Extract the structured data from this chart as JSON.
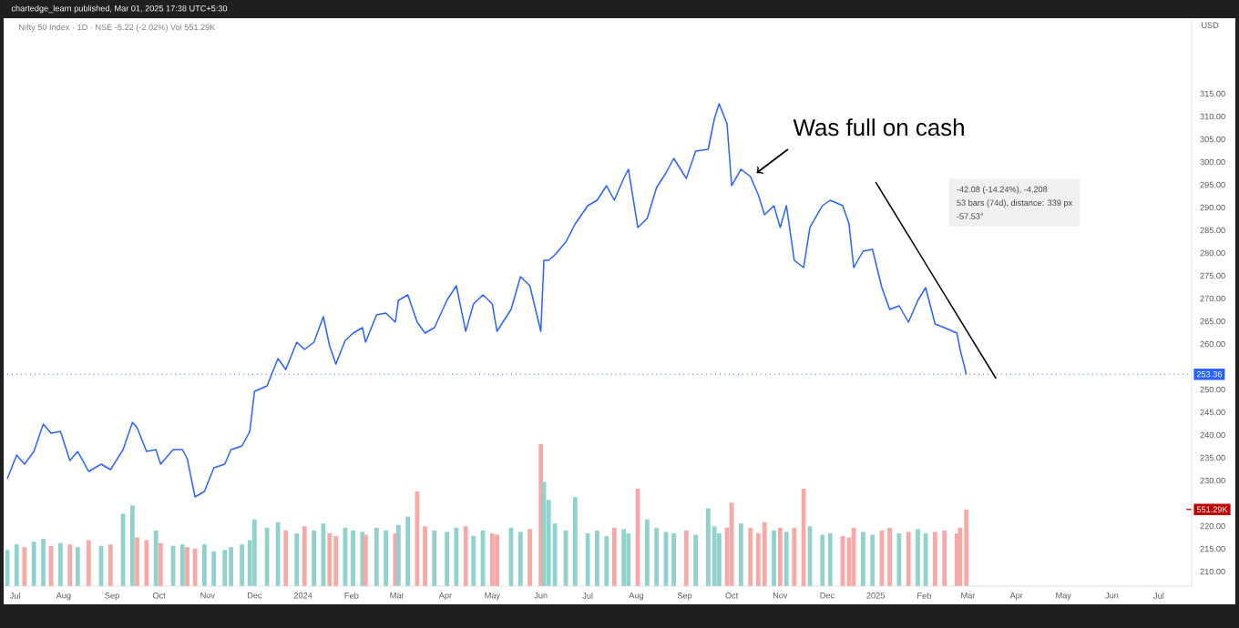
{
  "chart_data": {
    "type": "line",
    "title": "chartedge_learn published, Mar 01, 2025 17:38 UTC+5:30",
    "subtitle": "Nifty 50 Index · 1D · NSE   -5.22 (-2.02%)   Vol 551.29K",
    "ylabel": "USD",
    "x": [
      "2023-06-26",
      "2023-07-02",
      "2023-07-07",
      "2023-07-13",
      "2023-07-19",
      "2023-07-24",
      "2023-07-30",
      "2023-08-05",
      "2023-08-10",
      "2023-08-17",
      "2023-08-25",
      "2023-08-31",
      "2023-09-08",
      "2023-09-14",
      "2023-09-17",
      "2023-09-23",
      "2023-09-29",
      "2023-10-02",
      "2023-10-10",
      "2023-10-16",
      "2023-10-19",
      "2023-10-24",
      "2023-10-30",
      "2023-11-05",
      "2023-11-12",
      "2023-11-16",
      "2023-11-23",
      "2023-11-28",
      "2023-12-01",
      "2023-12-09",
      "2023-12-16",
      "2023-12-21",
      "2023-12-28",
      "2024-01-02",
      "2024-01-08",
      "2024-01-14",
      "2024-01-18",
      "2024-01-22",
      "2024-01-28",
      "2024-02-02",
      "2024-02-08",
      "2024-02-10",
      "2024-02-17",
      "2024-02-23",
      "2024-02-29",
      "2024-03-02",
      "2024-03-08",
      "2024-03-14",
      "2024-03-19",
      "2024-03-25",
      "2024-04-02",
      "2024-04-08",
      "2024-04-14",
      "2024-04-19",
      "2024-04-25",
      "2024-05-01",
      "2024-05-04",
      "2024-05-13",
      "2024-05-19",
      "2024-05-25",
      "2024-06-01",
      "2024-06-03",
      "2024-06-06",
      "2024-06-10",
      "2024-06-17",
      "2024-06-23",
      "2024-07-01",
      "2024-07-07",
      "2024-07-13",
      "2024-07-18",
      "2024-07-24",
      "2024-07-27",
      "2024-08-02",
      "2024-08-08",
      "2024-08-14",
      "2024-08-20",
      "2024-08-25",
      "2024-09-02",
      "2024-09-08",
      "2024-09-16",
      "2024-09-20",
      "2024-09-23",
      "2024-09-28",
      "2024-10-01",
      "2024-10-07",
      "2024-10-13",
      "2024-10-18",
      "2024-10-22",
      "2024-10-28",
      "2024-11-01",
      "2024-11-05",
      "2024-11-10",
      "2024-11-16",
      "2024-11-20",
      "2024-11-28",
      "2024-12-03",
      "2024-12-11",
      "2024-12-15",
      "2024-12-18",
      "2024-12-24",
      "2024-12-30",
      "2025-01-05",
      "2025-01-10",
      "2025-01-16",
      "2025-01-22",
      "2025-01-28",
      "2025-02-02",
      "2025-02-08",
      "2025-02-14",
      "2025-02-22",
      "2025-02-24",
      "2025-02-28"
    ],
    "series": [
      {
        "color": "#2962ff",
        "values": [
          230.4,
          235.6,
          233.6,
          236.4,
          242.4,
          240.4,
          240.8,
          234.4,
          236.4,
          232,
          233.6,
          232.4,
          236.8,
          242.8,
          241.6,
          236.4,
          236.8,
          233.6,
          236.8,
          236.8,
          234.8,
          226.4,
          227.6,
          232.8,
          233.6,
          236.8,
          237.6,
          240.8,
          249.6,
          250.8,
          256.8,
          254.4,
          260.4,
          258.8,
          260.4,
          266,
          259.6,
          255.6,
          260.8,
          262.4,
          263.6,
          260.4,
          266.4,
          266.8,
          264.8,
          269.6,
          270.8,
          264.8,
          262.4,
          263.6,
          269.6,
          272.8,
          262.8,
          268.8,
          270.8,
          268.8,
          262.8,
          267.6,
          274.8,
          272.8,
          262.8,
          278.4,
          278.4,
          279.6,
          282.4,
          286.4,
          290.4,
          291.6,
          294.8,
          291.6,
          296.4,
          298.4,
          285.6,
          287.6,
          294.4,
          297.6,
          300.8,
          296.4,
          302.4,
          302.8,
          309.6,
          312.8,
          308.4,
          294.8,
          298.4,
          296.8,
          292.8,
          288.4,
          290.4,
          285.6,
          290.4,
          278.4,
          276.8,
          285.6,
          290.4,
          291.6,
          290.4,
          286.4,
          276.8,
          280.4,
          280.8,
          272.4,
          267.6,
          268.4,
          264.8,
          269.6,
          272.4,
          264.4,
          263.6,
          262.4,
          258.8,
          253.36
        ]
      },
      {
        "type": "bar",
        "axis": "y2",
        "values": [
          260,
          300,
          280,
          320,
          340,
          290,
          310,
          300,
          280,
          330,
          290,
          300,
          520,
          580,
          350,
          330,
          400,
          310,
          290,
          300,
          280,
          270,
          300,
          250,
          260,
          280,
          300,
          330,
          480,
          420,
          460,
          400,
          380,
          430,
          400,
          450,
          380,
          360,
          420,
          400,
          390,
          370,
          420,
          400,
          380,
          440,
          500,
          680,
          430,
          400,
          390,
          420,
          430,
          360,
          400,
          380,
          370,
          420,
          390,
          410,
          1020,
          750,
          620,
          450,
          400,
          640,
          380,
          400,
          360,
          420,
          410,
          380,
          700,
          480,
          420,
          390,
          380,
          400,
          370,
          560,
          430,
          380,
          420,
          600,
          450,
          420,
          380,
          460,
          400,
          420,
          390,
          420,
          700,
          430,
          370,
          380,
          360,
          350,
          420,
          390,
          370,
          400,
          420,
          380,
          390,
          410,
          380,
          390,
          400,
          380,
          420,
          551.29
        ],
        "colors": [
          "#92d2cc",
          "#92d2cc",
          "#f7a9a8",
          "#92d2cc",
          "#92d2cc",
          "#f7a9a8",
          "#92d2cc",
          "#f7a9a8",
          "#92d2cc",
          "#f7a9a8",
          "#92d2cc",
          "#f7a9a8",
          "#92d2cc",
          "#92d2cc",
          "#f7a9a8",
          "#f7a9a8",
          "#92d2cc",
          "#f7a9a8",
          "#92d2cc",
          "#92d2cc",
          "#f7a9a8",
          "#f7a9a8",
          "#92d2cc",
          "#92d2cc",
          "#92d2cc",
          "#92d2cc",
          "#92d2cc",
          "#92d2cc",
          "#92d2cc",
          "#92d2cc",
          "#92d2cc",
          "#f7a9a8",
          "#92d2cc",
          "#f7a9a8",
          "#92d2cc",
          "#92d2cc",
          "#f7a9a8",
          "#f7a9a8",
          "#92d2cc",
          "#92d2cc",
          "#92d2cc",
          "#f7a9a8",
          "#92d2cc",
          "#92d2cc",
          "#f7a9a8",
          "#92d2cc",
          "#92d2cc",
          "#f7a9a8",
          "#f7a9a8",
          "#92d2cc",
          "#92d2cc",
          "#92d2cc",
          "#f7a9a8",
          "#92d2cc",
          "#92d2cc",
          "#f7a9a8",
          "#f7a9a8",
          "#92d2cc",
          "#92d2cc",
          "#f7a9a8",
          "#f7a9a8",
          "#92d2cc",
          "#92d2cc",
          "#92d2cc",
          "#92d2cc",
          "#92d2cc",
          "#92d2cc",
          "#92d2cc",
          "#92d2cc",
          "#f7a9a8",
          "#92d2cc",
          "#92d2cc",
          "#f7a9a8",
          "#92d2cc",
          "#92d2cc",
          "#92d2cc",
          "#92d2cc",
          "#f7a9a8",
          "#92d2cc",
          "#92d2cc",
          "#92d2cc",
          "#92d2cc",
          "#f7a9a8",
          "#f7a9a8",
          "#92d2cc",
          "#f7a9a8",
          "#f7a9a8",
          "#f7a9a8",
          "#92d2cc",
          "#f7a9a8",
          "#92d2cc",
          "#f7a9a8",
          "#f7a9a8",
          "#92d2cc",
          "#92d2cc",
          "#92d2cc",
          "#f7a9a8",
          "#f7a9a8",
          "#f7a9a8",
          "#92d2cc",
          "#92d2cc",
          "#f7a9a8",
          "#f7a9a8",
          "#92d2cc",
          "#f7a9a8",
          "#92d2cc",
          "#92d2cc",
          "#f7a9a8",
          "#f7a9a8",
          "#f7a9a8",
          "#f7a9a8",
          "#f7a9a8"
        ]
      },
      {
        "type": "line",
        "color": "#000000",
        "x": [
          "2025-01-01",
          "2025-03-19"
        ],
        "values": [
          295.6,
          252.4
        ]
      }
    ],
    "xlim": [
      "2023-06-26",
      "2025-07-22"
    ],
    "xticks": [
      {
        "value": "2023-07-01",
        "label": "Jul"
      },
      {
        "value": "2023-08-01",
        "label": "Aug"
      },
      {
        "value": "2023-09-01",
        "label": "Sep"
      },
      {
        "value": "2023-10-01",
        "label": "Oct"
      },
      {
        "value": "2023-11-01",
        "label": "Nov"
      },
      {
        "value": "2023-12-01",
        "label": "Dec"
      },
      {
        "value": "2024-01-01",
        "label": "2024"
      },
      {
        "value": "2024-02-01",
        "label": "Feb"
      },
      {
        "value": "2024-03-01",
        "label": "Mar"
      },
      {
        "value": "2024-04-01",
        "label": "Apr"
      },
      {
        "value": "2024-05-01",
        "label": "May"
      },
      {
        "value": "2024-06-01",
        "label": "Jun"
      },
      {
        "value": "2024-07-01",
        "label": "Jul"
      },
      {
        "value": "2024-08-01",
        "label": "Aug"
      },
      {
        "value": "2024-09-01",
        "label": "Sep"
      },
      {
        "value": "2024-10-01",
        "label": "Oct"
      },
      {
        "value": "2024-11-01",
        "label": "Nov"
      },
      {
        "value": "2024-12-01",
        "label": "Dec"
      },
      {
        "value": "2025-01-01",
        "label": "2025"
      },
      {
        "value": "2025-02-01",
        "label": "Feb"
      },
      {
        "value": "2025-03-01",
        "label": "Mar"
      },
      {
        "value": "2025-04-01",
        "label": "Apr"
      },
      {
        "value": "2025-05-01",
        "label": "May"
      },
      {
        "value": "2025-06-01",
        "label": "Jun"
      },
      {
        "value": "2025-07-01",
        "label": "Jul"
      }
    ],
    "ylim": [
      206.8,
      331.2
    ],
    "yticks": [
      {
        "value": 210,
        "label": "210.00"
      },
      {
        "value": 215,
        "label": "215.00"
      },
      {
        "value": 220,
        "label": "220.00"
      },
      {
        "value": 230,
        "label": "230.00"
      },
      {
        "value": 235,
        "label": "235.00"
      },
      {
        "value": 240,
        "label": "240.00"
      },
      {
        "value": 245,
        "label": "245.00"
      },
      {
        "value": 250,
        "label": "250.00"
      },
      {
        "value": 260,
        "label": "260.00"
      },
      {
        "value": 265,
        "label": "265.00"
      },
      {
        "value": 270,
        "label": "270.00"
      },
      {
        "value": 275,
        "label": "275.00"
      },
      {
        "value": 280,
        "label": "280.00"
      },
      {
        "value": 285,
        "label": "285.00"
      },
      {
        "value": 290,
        "label": "290.00"
      },
      {
        "value": 295,
        "label": "295.00"
      },
      {
        "value": 300,
        "label": "300.00"
      },
      {
        "value": 305,
        "label": "305.00"
      },
      {
        "value": 310,
        "label": "310.00"
      },
      {
        "value": 315,
        "label": "315.00"
      }
    ],
    "y2lim": [
      0,
      4070
    ],
    "y2ticks": [
      {
        "value": 551.29,
        "label": "551.29K"
      }
    ],
    "ref_lines": [
      {
        "axis": "y",
        "value": 253.36,
        "label": "253.36",
        "color": "#2962ff",
        "line_style": "dotted"
      }
    ],
    "annotations": [
      {
        "text": "Was full on cash",
        "x": "2024-10-16",
        "y": 296.8
      },
      "-42.08 (-14.24%), -4,208",
      "53 bars (74d), distance: 339 px",
      "-57.53°"
    ]
  }
}
